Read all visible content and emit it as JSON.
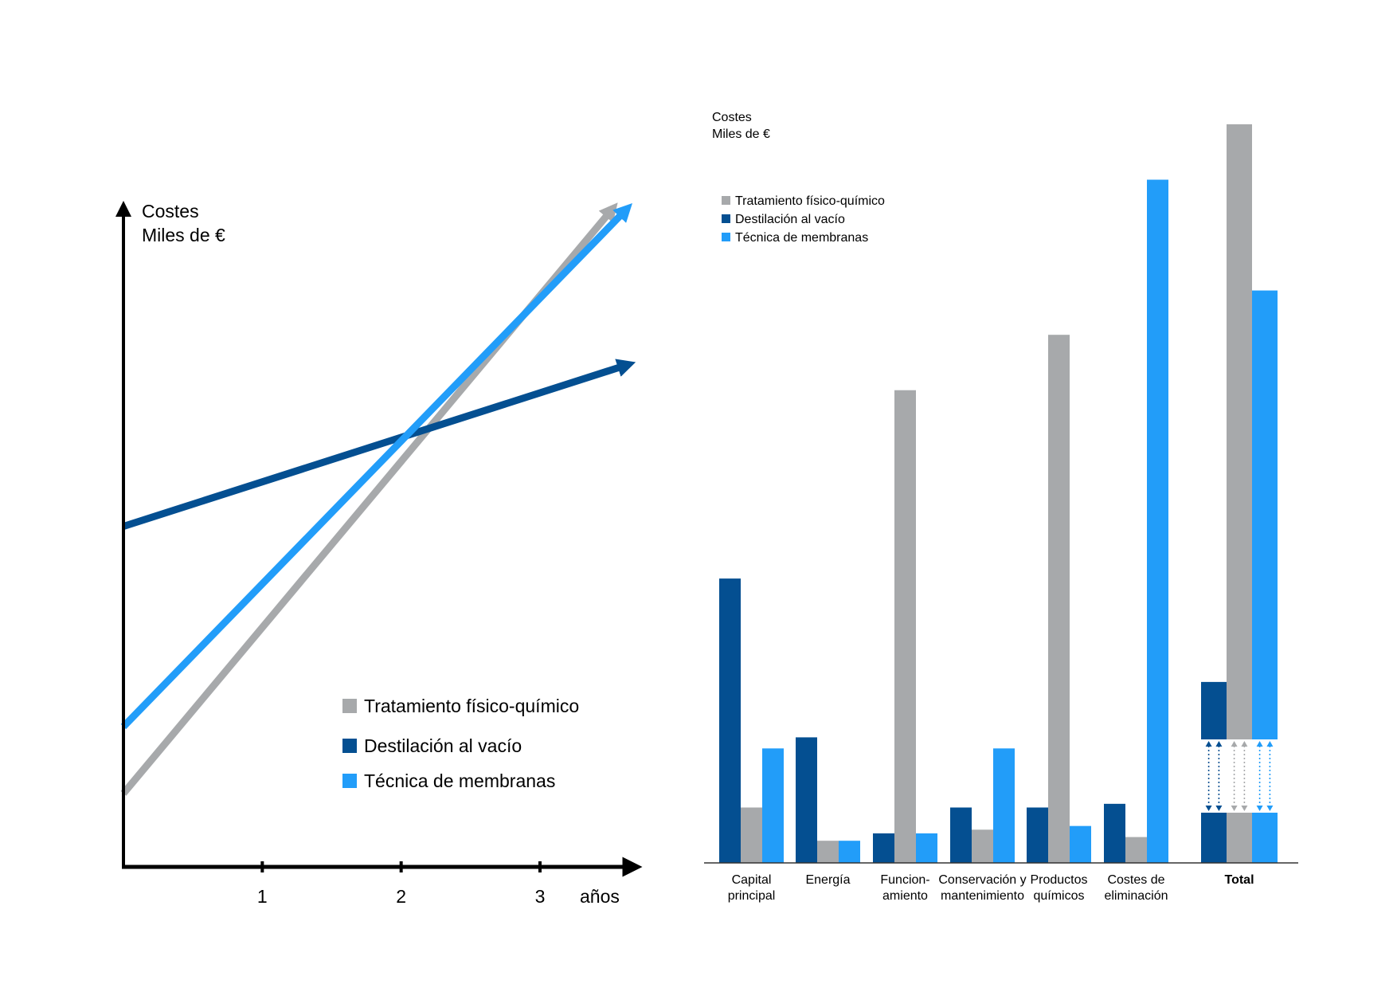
{
  "colors": {
    "fisico_quimico": "#a7a9ab",
    "destilacion": "#044f91",
    "membranas": "#229df9",
    "axis": "#000000"
  },
  "chart_data": [
    {
      "type": "line",
      "ylabel_line1": "Costes",
      "ylabel_line2": "Miles de €",
      "xlabel": "años",
      "x_ticks": [
        "1",
        "2",
        "3"
      ],
      "xlim": [
        0,
        3.7
      ],
      "ylim": [
        0,
        100
      ],
      "legend_position": "bottom-right",
      "series": [
        {
          "name": "Tratamiento físico-químico",
          "color_key": "fisico_quimico",
          "x": [
            0,
            3.5
          ],
          "y": [
            11,
            98
          ]
        },
        {
          "name": "Destilación al vacío",
          "color_key": "destilacion",
          "x": [
            0,
            3.6
          ],
          "y": [
            51,
            75
          ]
        },
        {
          "name": "Técnica de membranas",
          "color_key": "membranas",
          "x": [
            0,
            3.6
          ],
          "y": [
            21,
            98
          ]
        }
      ]
    },
    {
      "type": "bar",
      "ylabel_line1": "Costes",
      "ylabel_line2": "Miles de €",
      "legend_position": "top-left",
      "categories": [
        [
          "Capital",
          "principal"
        ],
        [
          "Energía"
        ],
        [
          "Funcion-",
          "amiento"
        ],
        [
          "Conservación y",
          "mantenimiento"
        ],
        [
          "Productos",
          "químicos"
        ],
        [
          "Costes de",
          "eliminación"
        ],
        [
          "Total"
        ]
      ],
      "total_category_index": 6,
      "ylim": [
        0,
        100
      ],
      "series": [
        {
          "name": "Destilación al vacío",
          "color_key": "destilacion",
          "values": [
            38.5,
            17,
            4,
            7.5,
            7.5,
            8,
            24.5
          ]
        },
        {
          "name": "Tratamiento físico-químico",
          "color_key": "fisico_quimico",
          "values": [
            7.5,
            3,
            64,
            4.5,
            71.5,
            3.5,
            100
          ]
        },
        {
          "name": "Técnica de membranas",
          "color_key": "membranas",
          "values": [
            15.5,
            3,
            4,
            15.5,
            5,
            92.5,
            77.5
          ]
        }
      ],
      "total_baseline_block": 6.8
    }
  ]
}
